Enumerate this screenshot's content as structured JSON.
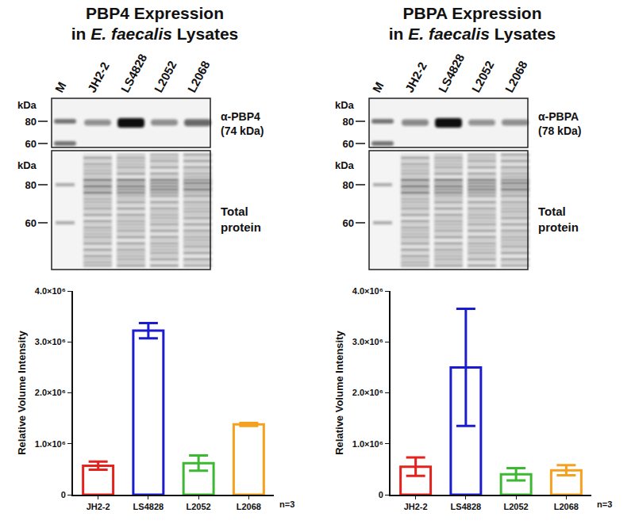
{
  "panels": [
    {
      "title": {
        "lines": [
          "PBP4 Expression",
          "in E. faecalis Lysates"
        ],
        "italic": "E. faecalis"
      },
      "blot": {
        "marker_label": "M",
        "lanes": [
          "JH2-2",
          "LS4828",
          "L2052",
          "L2068"
        ],
        "kda_label": "kDa",
        "top_markers": [
          80,
          60
        ],
        "bottom_markers": [
          80,
          60
        ],
        "antibody": "α-PBP4",
        "size": "(74 kDa)",
        "total": [
          "Total",
          "protein"
        ]
      }
    },
    {
      "title": {
        "lines": [
          "PBPA Expression",
          "in E. faecalis Lysates"
        ],
        "italic": "E. faecalis"
      },
      "blot": {
        "marker_label": "M",
        "lanes": [
          "JH2-2",
          "LS4828",
          "L2052",
          "L2068"
        ],
        "kda_label": "kDa",
        "top_markers": [
          80,
          60
        ],
        "bottom_markers": [
          80,
          60
        ],
        "antibody": "α-PBPA",
        "size": "(78 kDa)",
        "total": [
          "Total",
          "protein"
        ]
      }
    }
  ],
  "chart_data": [
    {
      "type": "bar",
      "categories": [
        "JH2-2",
        "LS4828",
        "L2052",
        "L2068"
      ],
      "values": [
        570000,
        3220000,
        620000,
        1380000
      ],
      "errors": [
        80000,
        150000,
        150000,
        30000
      ],
      "colors": [
        "#e3231c",
        "#1c1ccf",
        "#3cb832",
        "#f5a01e"
      ],
      "ylabel": "Relative Volume Intensity",
      "ylim": [
        0,
        4000000
      ],
      "yticks": [
        0,
        {
          "value": 1000000,
          "label": "1.0×10⁶"
        },
        {
          "value": 2000000,
          "label": "2.0×10⁶"
        },
        {
          "value": 3000000,
          "label": "3.0×10⁶"
        },
        {
          "value": 4000000,
          "label": "4.0×10⁶"
        }
      ],
      "annotations": [
        "n=3"
      ]
    },
    {
      "type": "bar",
      "categories": [
        "JH2-2",
        "LS4828",
        "L2052",
        "L2068"
      ],
      "values": [
        550000,
        2500000,
        400000,
        480000
      ],
      "errors": [
        180000,
        1150000,
        120000,
        100000
      ],
      "colors": [
        "#e3231c",
        "#1c1ccf",
        "#3cb832",
        "#f5a01e"
      ],
      "ylabel": "Relative Volume Intensity",
      "ylim": [
        0,
        4000000
      ],
      "yticks": [
        0,
        {
          "value": 1000000,
          "label": "1.0×10⁶"
        },
        {
          "value": 2000000,
          "label": "2.0×10⁶"
        },
        {
          "value": 3000000,
          "label": "3.0×10⁶"
        },
        {
          "value": 4000000,
          "label": "4.0×10⁶"
        }
      ],
      "annotations": [
        "n=3"
      ]
    }
  ]
}
